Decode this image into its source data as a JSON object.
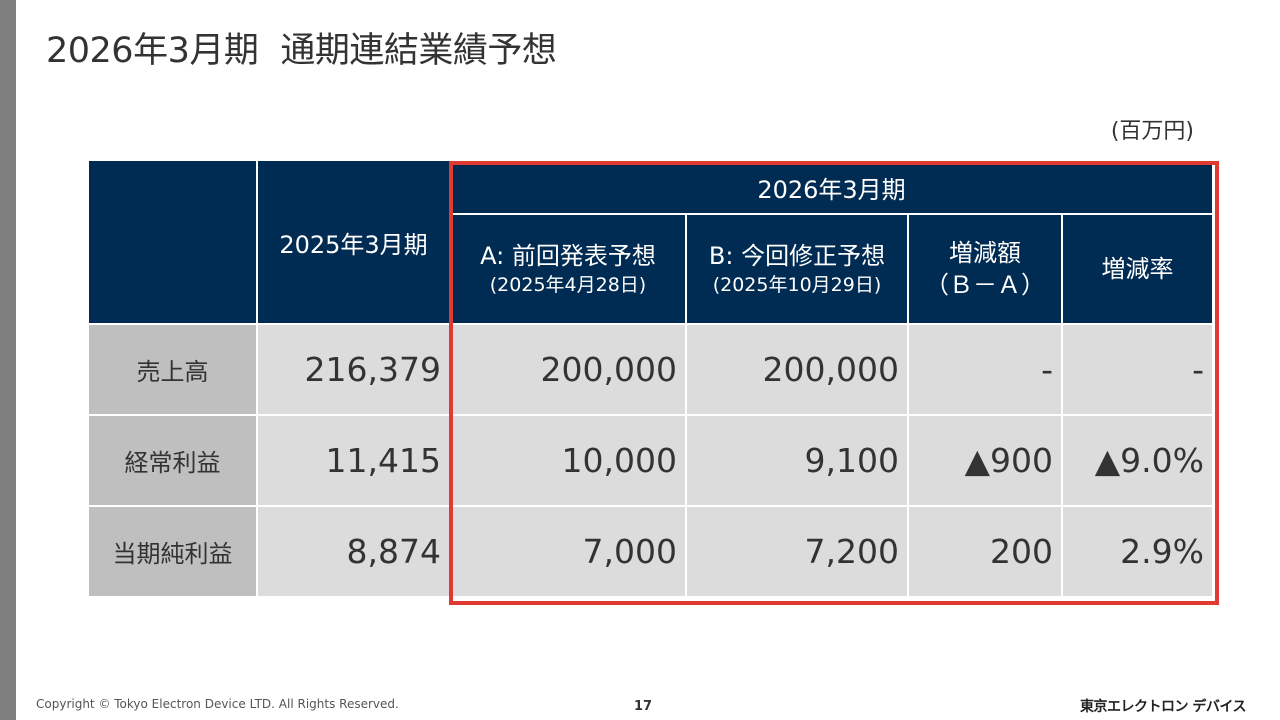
{
  "slide": {
    "title_part1": "2026年3月期",
    "title_part2": "通期連結業績予想",
    "unit": "(百万円)"
  },
  "table": {
    "col_prev_label": "2025年3月期",
    "group_label": "2026年3月期",
    "col_a_label": "A: 前回発表予想",
    "col_a_date": "(2025年4月28日)",
    "col_b_label": "B: 今回修正予想",
    "col_b_date": "(2025年10月29日)",
    "col_diff_label": "増減額",
    "col_diff_formula": "（Ｂ－Ａ）",
    "col_rate_label": "増減率",
    "rows": [
      {
        "label": "売上高",
        "prev": "216,379",
        "a": "200,000",
        "b": "200,000",
        "diff": "-",
        "rate": "-"
      },
      {
        "label": "経常利益",
        "prev": "11,415",
        "a": "10,000",
        "b": "9,100",
        "diff": "▲900",
        "rate": "▲9.0%"
      },
      {
        "label": "当期純利益",
        "prev": "8,874",
        "a": "7,000",
        "b": "7,200",
        "diff": "200",
        "rate": "2.9%"
      }
    ]
  },
  "footer": {
    "copyright": "Copyright © Tokyo Electron Device LTD. All Rights Reserved.",
    "page_number": "17",
    "logo_text": "東京エレクトロン デバイス"
  },
  "colors": {
    "header_bg": "#002b52",
    "highlight_border": "#e03a33",
    "label_bg": "#bfbfbf",
    "value_bg": "#dcdcdc"
  }
}
